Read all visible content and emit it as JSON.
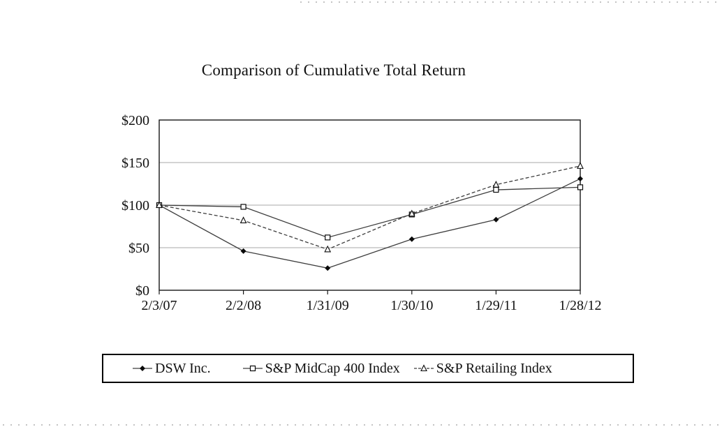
{
  "title": "Comparison of Cumulative Total Return",
  "chart_data": {
    "type": "line",
    "title": "Comparison of Cumulative Total Return",
    "categories": [
      "2/3/07",
      "2/2/08",
      "1/31/09",
      "1/30/10",
      "1/29/11",
      "1/28/12"
    ],
    "series": [
      {
        "name": "DSW Inc.",
        "values": [
          100,
          46,
          26,
          60,
          83,
          131
        ],
        "marker": "diamond-filled",
        "line_style": "solid"
      },
      {
        "name": "S&P MidCap 400 Index",
        "values": [
          100,
          98,
          62,
          89,
          118,
          121
        ],
        "marker": "square-open",
        "line_style": "solid"
      },
      {
        "name": "S&P Retailing Index",
        "values": [
          100,
          82,
          48,
          90,
          124,
          146
        ],
        "marker": "triangle-open",
        "line_style": "dashed"
      }
    ],
    "ylim": [
      0,
      200
    ],
    "ytick_values": [
      0,
      50,
      100,
      150,
      200
    ],
    "ytick_labels": [
      "$0",
      "$50",
      "$100",
      "$150",
      "$200"
    ],
    "xlabel": "",
    "ylabel": "",
    "grid": "horizontal",
    "legend_position": "bottom"
  },
  "colors": {
    "line": "#3d3d3d",
    "marker": "#0a0a0a",
    "grid": "#a8a8a8",
    "axis": "#161616",
    "text": "#111111"
  }
}
